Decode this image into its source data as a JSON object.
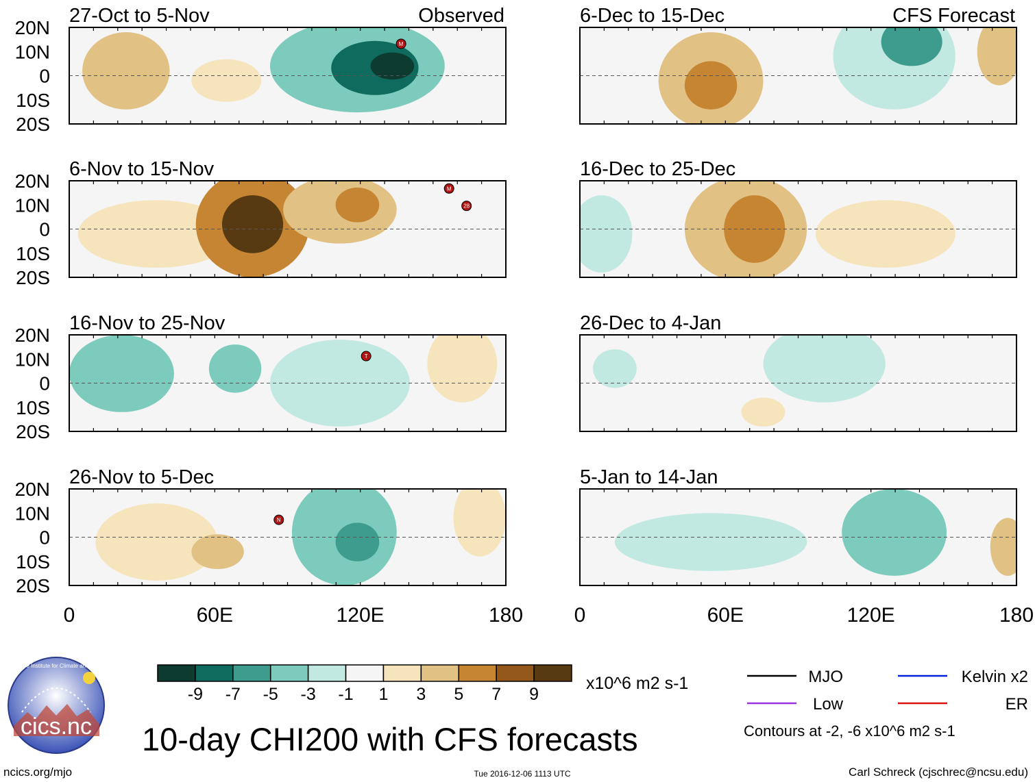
{
  "chart_data": {
    "type": "heatmap",
    "title": "10-day CHI200 with CFS forecasts",
    "variable": "CHI200",
    "units": "x10^6 m2 s-1",
    "colorbar": {
      "tick_labels": [
        "-9",
        "-7",
        "-5",
        "-3",
        "-1",
        "1",
        "3",
        "5",
        "7",
        "9"
      ],
      "colors": [
        "#0d3b30",
        "#0e6b5e",
        "#3d9c8e",
        "#7ccbbd",
        "#c2e9e1",
        "#f5f5f5",
        "#f6e4bd",
        "#e2c185",
        "#c58532",
        "#94591a",
        "#583a12"
      ]
    },
    "x_axis": {
      "tick_labels": [
        "0",
        "60E",
        "120E",
        "180"
      ],
      "range": [
        0,
        180
      ]
    },
    "y_axis": {
      "tick_labels": [
        "20N",
        "10N",
        "0",
        "10S",
        "20S"
      ],
      "range": [
        -20,
        20
      ]
    },
    "columns": [
      {
        "label": "Observed",
        "panels": [
          {
            "period": "27-Oct to 5-Nov"
          },
          {
            "period": "6-Nov to 15-Nov"
          },
          {
            "period": "16-Nov to 25-Nov"
          },
          {
            "period": "26-Nov to 5-Dec"
          }
        ]
      },
      {
        "label": "CFS Forecast",
        "panels": [
          {
            "period": "6-Dec to 15-Dec"
          },
          {
            "period": "16-Dec to 25-Dec"
          },
          {
            "period": "26-Dec to 4-Jan"
          },
          {
            "period": "5-Jan to 14-Jan"
          }
        ]
      }
    ],
    "legend": {
      "entries": [
        {
          "name": "MJO",
          "color": "#000000"
        },
        {
          "name": "Kelvin x2",
          "color": "#0022dd"
        },
        {
          "name": "Low",
          "color": "#9933dd"
        },
        {
          "name": "ER",
          "color": "#dd1111"
        }
      ],
      "note": "Contours at -2, -6 x10^6 m2 s-1"
    },
    "storm_markers": [
      {
        "panel": "27-Oct to 5-Nov",
        "label": "M"
      },
      {
        "panel": "6-Nov to 15-Nov",
        "label": "M"
      },
      {
        "panel": "6-Nov to 15-Nov",
        "label": "28"
      },
      {
        "panel": "16-Nov to 25-Nov",
        "label": "T"
      },
      {
        "panel": "26-Nov to 5-Dec",
        "label": "N"
      }
    ]
  },
  "footer": {
    "logo_text": "cics.nc",
    "logo_ring_text": "Cooperative Institute for Climate and Satellites",
    "website": "ncics.org/mjo",
    "timestamp": "Tue 2016-12-06 1113 UTC",
    "credit": "Carl Schreck (cjschrec@ncsu.edu)"
  }
}
